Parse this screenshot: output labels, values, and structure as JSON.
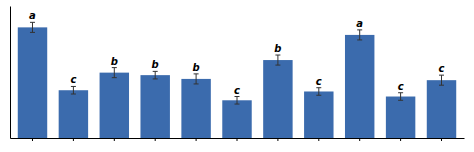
{
  "chart_data": {
    "type": "bar",
    "categories": [
      null,
      null,
      null,
      null,
      null,
      null,
      null,
      null,
      null,
      null,
      null
    ],
    "values": [
      0.88,
      0.38,
      0.52,
      0.5,
      0.47,
      0.3,
      0.62,
      0.37,
      0.82,
      0.33,
      0.46
    ],
    "errors": [
      0.04,
      0.03,
      0.04,
      0.03,
      0.04,
      0.03,
      0.04,
      0.03,
      0.04,
      0.03,
      0.04
    ],
    "labels": [
      "a",
      "c",
      "b",
      "b",
      "b",
      "c",
      "b",
      "c",
      "a",
      "c",
      "c"
    ],
    "color": "#3B6BAD",
    "error_color": "#333333",
    "ylim": [
      0,
      1.05
    ],
    "yticks": [],
    "tick_labels": false
  }
}
